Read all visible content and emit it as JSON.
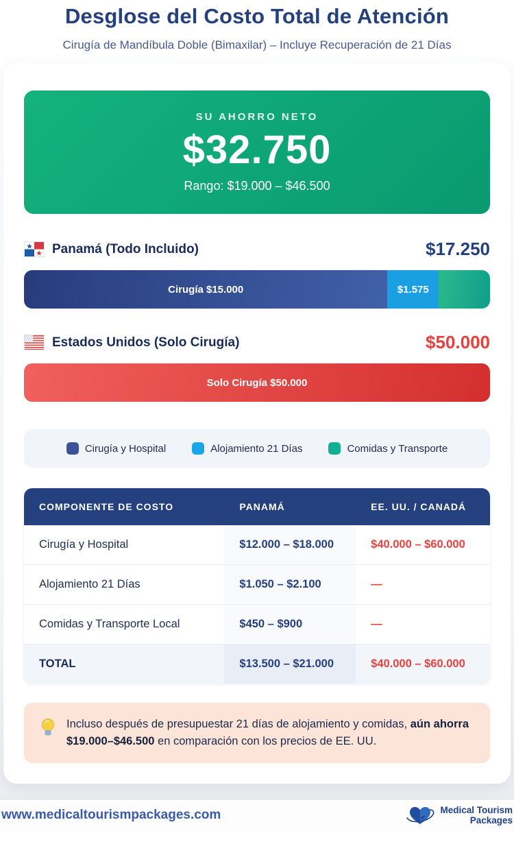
{
  "header": {
    "title": "Desglose del Costo Total de Atención",
    "subtitle": "Cirugía de Mandíbula Doble (Bimaxilar) – Incluye Recuperación de 21 Días"
  },
  "savings_card": {
    "label": "SU AHORRO NETO",
    "amount": "$32.750",
    "range": "Rango: $19.000 – $46.500",
    "color_start": "#14b27d",
    "color_end": "#099a6f"
  },
  "panama": {
    "flag": "panama-flag",
    "name": "Panamá (Todo Incluido)",
    "total": "$17.250",
    "segments": [
      {
        "id": "cirugia-hospital",
        "label": "Cirugía $15.000",
        "width_pct": 78,
        "color_start": "#283c7d",
        "color_end": "#4060a8"
      },
      {
        "id": "alojamiento",
        "label": "$1.575",
        "width_pct": 11,
        "color_start": "#1b9fe3",
        "color_end": "#1b9fe3"
      },
      {
        "id": "comidas-transporte",
        "label": "",
        "width_pct": 11,
        "color_start": "#2cb98d",
        "color_end": "#0f9f8a"
      }
    ]
  },
  "usa": {
    "flag": "usa-flag",
    "name": "Estados Unidos (Solo Cirugía)",
    "total": "$50.000",
    "bar_label": "Solo Cirugía $50.000",
    "color_start": "#f0605c",
    "color_end": "#d42f2f"
  },
  "legend": {
    "items": [
      {
        "label": "Cirugía y Hospital",
        "color": "#3b5398"
      },
      {
        "label": "Alojamiento 21 Días",
        "color": "#1ba5e8"
      },
      {
        "label": "Comidas y Transporte",
        "color": "#12b093"
      }
    ]
  },
  "table": {
    "headers": [
      "COMPONENTE DE COSTO",
      "PANAMÁ",
      "EE. UU. / CANADÁ"
    ],
    "rows": [
      {
        "component": "Cirugía y Hospital",
        "panama": "$12.000 – $18.000",
        "usa": "$40.000 – $60.000",
        "total": false
      },
      {
        "component": "Alojamiento 21 Días",
        "panama": "$1.050 – $2.100",
        "usa": "—",
        "total": false
      },
      {
        "component": "Comidas y Transporte Local",
        "panama": "$450 – $900",
        "usa": "—",
        "total": false
      },
      {
        "component": "TOTAL",
        "panama": "$13.500 – $21.000",
        "usa": "$40.000 – $60.000",
        "total": true
      }
    ]
  },
  "note": {
    "icon": "lightbulb-icon",
    "text_before": "Incluso después de presupuestar 21 días de alojamiento y comidas, ",
    "text_bold": "aún ahorra $19.000–$46.500",
    "text_after": " en comparación con los precios de EE. UU."
  },
  "footer": {
    "website": "www.medicaltourismpackages.com",
    "logo_line1": "Medical Tourism",
    "logo_line2": "Packages"
  },
  "chart_data": {
    "type": "bar",
    "title": "Desglose del Costo Total de Atención",
    "subtitle": "Cirugía de Mandíbula Doble (Bimaxilar) – Incluye Recuperación de 21 Días",
    "net_savings": 32750,
    "savings_range": [
      19000,
      46500
    ],
    "currency": "USD",
    "legend_position": "bottom",
    "series": [
      {
        "name": "Panamá (Todo Incluido)",
        "total": 17250,
        "segments": [
          {
            "label": "Cirugía y Hospital",
            "value": 15000
          },
          {
            "label": "Alojamiento 21 Días",
            "value": 1575
          },
          {
            "label": "Comidas y Transporte",
            "value": 675
          }
        ]
      },
      {
        "name": "Estados Unidos (Solo Cirugía)",
        "total": 50000,
        "segments": [
          {
            "label": "Solo Cirugía",
            "value": 50000
          }
        ]
      }
    ],
    "table": {
      "headers": [
        "COMPONENTE DE COSTO",
        "PANAMÁ",
        "EE. UU. / CANADÁ"
      ],
      "rows": [
        [
          "Cirugía y Hospital",
          [
            12000,
            18000
          ],
          [
            40000,
            60000
          ]
        ],
        [
          "Alojamiento 21 Días",
          [
            1050,
            2100
          ],
          null
        ],
        [
          "Comidas y Transporte Local",
          [
            450,
            900
          ],
          null
        ],
        [
          "TOTAL",
          [
            13500,
            21000
          ],
          [
            40000,
            60000
          ]
        ]
      ]
    }
  }
}
